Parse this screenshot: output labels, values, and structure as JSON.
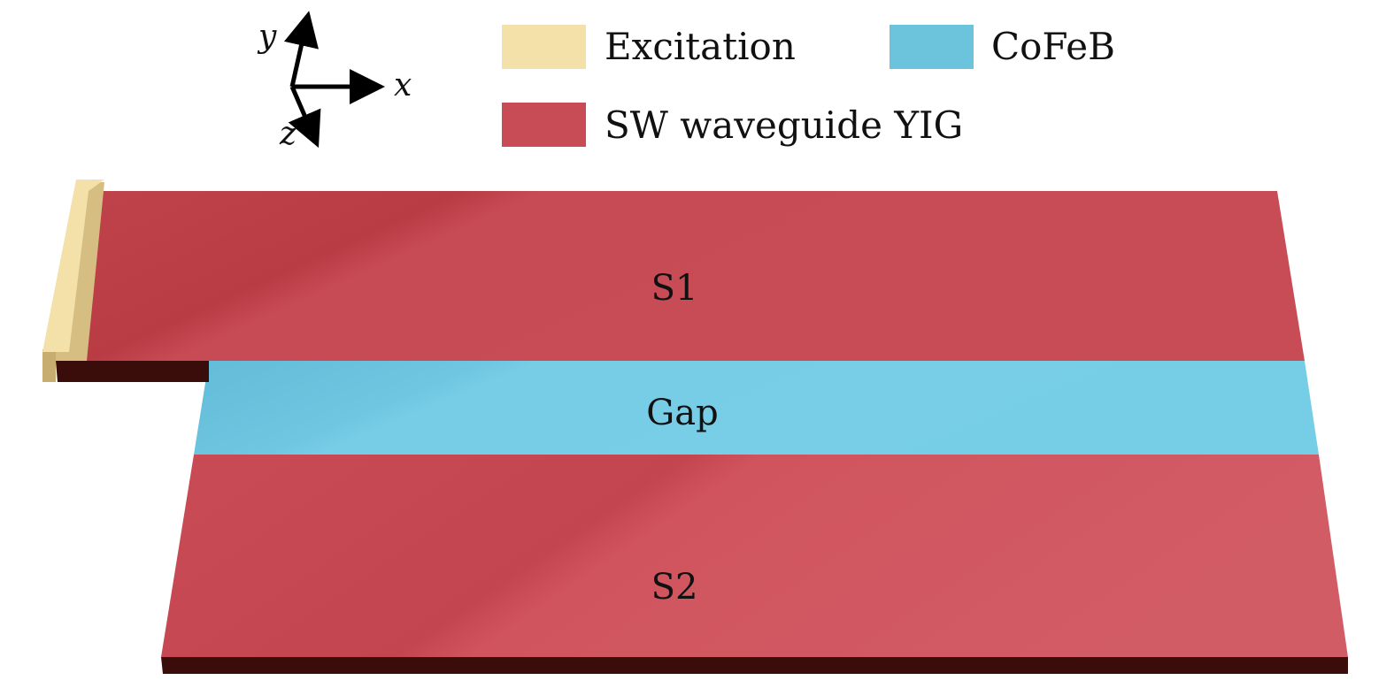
{
  "axes": {
    "x": "x",
    "y": "y",
    "z": "z"
  },
  "legend": [
    {
      "label": "Excitation",
      "color": "#f3e1a9"
    },
    {
      "label": "CoFeB",
      "color": "#6cc3dc"
    },
    {
      "label": "SW waveguide YIG",
      "color": "#c74c55"
    }
  ],
  "regions": {
    "s1": "S1",
    "gap": "Gap",
    "s2": "S2"
  },
  "colors": {
    "yig": "#c74c55",
    "yig_dark_edge": "#3a0d0a",
    "cofeb": "#6cc3dc",
    "excitation": "#f3e1a9"
  }
}
